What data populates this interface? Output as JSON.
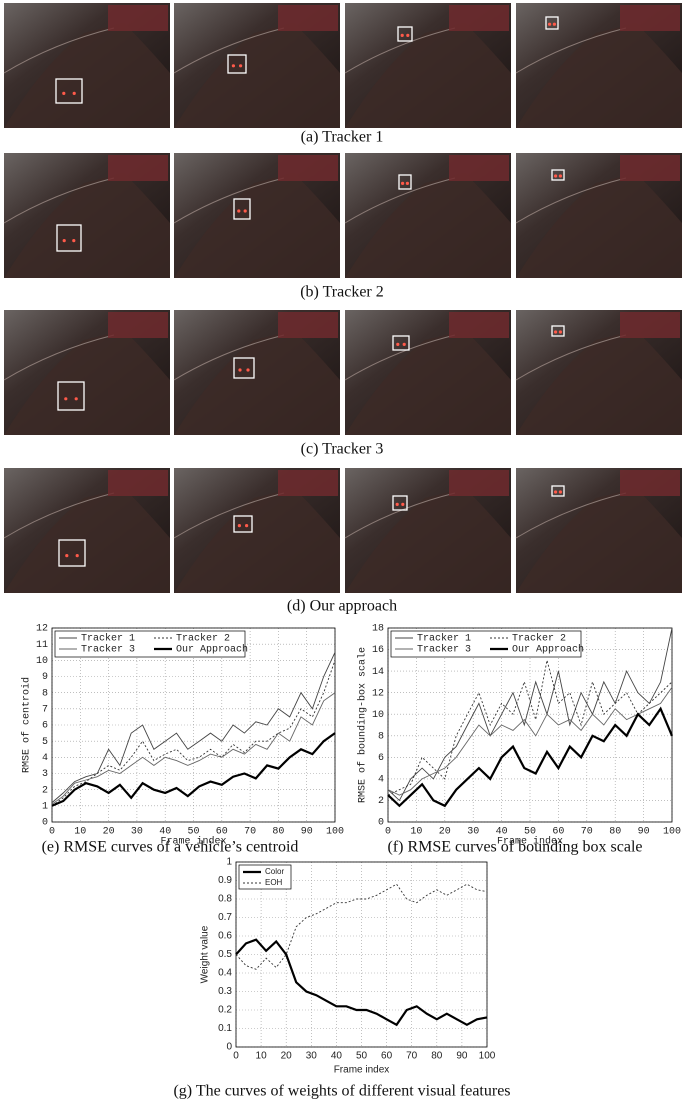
{
  "captions": [
    "(a) Tracker 1",
    "(b) Tracker 2",
    "(c) Tracker 3",
    "(d) Our approach",
    "(e) RMSE curves of a vehicle’s centroid",
    "(f) RMSE curves of bounding box scale",
    "(g) The curves of weights of different visual features"
  ],
  "chart_data": [
    {
      "type": "line",
      "xlabel": "Frame index",
      "ylabel": "RMSE of centroid",
      "x": [
        0,
        4,
        8,
        12,
        16,
        20,
        24,
        28,
        32,
        36,
        40,
        44,
        48,
        52,
        56,
        60,
        64,
        68,
        72,
        76,
        80,
        84,
        88,
        92,
        96,
        100
      ],
      "xlim": [
        0,
        100
      ],
      "xticks": [
        0,
        10,
        20,
        30,
        40,
        50,
        60,
        70,
        80,
        90,
        100
      ],
      "ylim": [
        0,
        12
      ],
      "yticks": [
        0,
        1,
        2,
        3,
        4,
        5,
        6,
        7,
        8,
        9,
        10,
        11,
        12
      ],
      "grid": true,
      "legend": "upper left",
      "series": [
        {
          "name": "Tracker 1",
          "color": "#444444",
          "style": "solid",
          "values": [
            1.2,
            1.8,
            2.5,
            2.8,
            3.0,
            4.5,
            3.5,
            5.5,
            6.0,
            4.5,
            5.0,
            5.5,
            4.5,
            5.0,
            5.5,
            5.0,
            6.0,
            5.5,
            6.2,
            6.0,
            7.0,
            6.5,
            8.0,
            7.0,
            9.0,
            10.5
          ]
        },
        {
          "name": "Tracker 2",
          "color": "#333333",
          "style": "dotted",
          "values": [
            1.0,
            1.5,
            2.2,
            2.5,
            3.0,
            3.5,
            3.2,
            4.0,
            5.0,
            3.8,
            4.2,
            4.5,
            3.8,
            4.0,
            4.5,
            4.0,
            4.8,
            4.3,
            5.0,
            5.0,
            5.5,
            5.8,
            7.0,
            6.5,
            8.0,
            10.0
          ]
        },
        {
          "name": "Tracker 3",
          "color": "#666666",
          "style": "solid",
          "values": [
            1.1,
            1.6,
            2.4,
            2.6,
            2.8,
            3.2,
            3.0,
            3.5,
            4.0,
            3.5,
            4.0,
            3.8,
            3.5,
            3.8,
            4.2,
            4.0,
            4.5,
            4.2,
            4.8,
            4.5,
            5.5,
            5.0,
            6.5,
            6.0,
            7.5,
            8.0
          ]
        },
        {
          "name": "Our Approach",
          "color": "#000000",
          "style": "bold",
          "values": [
            1.0,
            1.3,
            2.0,
            2.4,
            2.2,
            1.8,
            2.3,
            1.5,
            2.4,
            2.0,
            1.8,
            2.1,
            1.6,
            2.2,
            2.5,
            2.3,
            2.8,
            3.0,
            2.7,
            3.5,
            3.3,
            4.0,
            4.5,
            4.2,
            5.0,
            5.5
          ]
        }
      ]
    },
    {
      "type": "line",
      "xlabel": "Frame index",
      "ylabel": "RMSE of bounding-box scale",
      "x": [
        0,
        4,
        8,
        12,
        16,
        20,
        24,
        28,
        32,
        36,
        40,
        44,
        48,
        52,
        56,
        60,
        64,
        68,
        72,
        76,
        80,
        84,
        88,
        92,
        96,
        100
      ],
      "xlim": [
        0,
        100
      ],
      "xticks": [
        0,
        10,
        20,
        30,
        40,
        50,
        60,
        70,
        80,
        90,
        100
      ],
      "ylim": [
        0,
        18
      ],
      "yticks": [
        0,
        2,
        4,
        6,
        8,
        10,
        12,
        14,
        16,
        18
      ],
      "grid": true,
      "legend": "upper left",
      "series": [
        {
          "name": "Tracker 1",
          "color": "#444444",
          "style": "solid",
          "values": [
            3.0,
            2.0,
            4.0,
            5.0,
            4.0,
            6.0,
            7.0,
            9.0,
            11.0,
            8.0,
            10.0,
            12.0,
            9.0,
            13.0,
            10.0,
            14.0,
            9.0,
            12.0,
            10.0,
            13.0,
            11.0,
            14.0,
            12.0,
            11.0,
            13.0,
            18.0
          ]
        },
        {
          "name": "Tracker 2",
          "color": "#333333",
          "style": "dotted",
          "values": [
            2.5,
            3.0,
            3.5,
            6.0,
            5.0,
            4.0,
            8.0,
            10.0,
            12.0,
            9.0,
            11.0,
            10.0,
            13.0,
            9.5,
            15.0,
            11.0,
            12.0,
            9.0,
            13.0,
            10.0,
            11.0,
            12.0,
            10.0,
            11.0,
            12.0,
            13.0
          ]
        },
        {
          "name": "Tracker 3",
          "color": "#666666",
          "style": "solid",
          "values": [
            3.0,
            2.5,
            3.0,
            4.0,
            4.5,
            5.0,
            6.0,
            7.5,
            9.0,
            8.0,
            9.0,
            8.5,
            9.5,
            8.0,
            10.0,
            9.0,
            9.5,
            8.5,
            10.0,
            9.0,
            10.5,
            9.5,
            10.0,
            10.5,
            11.0,
            12.5
          ]
        },
        {
          "name": "Our Approach",
          "color": "#000000",
          "style": "bold",
          "values": [
            2.5,
            1.5,
            2.5,
            3.5,
            2.0,
            1.5,
            3.0,
            4.0,
            5.0,
            4.0,
            6.0,
            7.0,
            5.0,
            4.5,
            6.5,
            5.0,
            7.0,
            6.0,
            8.0,
            7.5,
            9.0,
            8.0,
            10.0,
            9.0,
            10.5,
            8.0
          ]
        }
      ]
    },
    {
      "type": "line",
      "xlabel": "Frame index",
      "ylabel": "Weight value",
      "x": [
        0,
        4,
        8,
        12,
        16,
        20,
        24,
        28,
        32,
        36,
        40,
        44,
        48,
        52,
        56,
        60,
        64,
        68,
        72,
        76,
        80,
        84,
        88,
        92,
        96,
        100
      ],
      "xlim": [
        0,
        100
      ],
      "xticks": [
        0,
        10,
        20,
        30,
        40,
        50,
        60,
        70,
        80,
        90,
        100
      ],
      "ylim": [
        0,
        1
      ],
      "yticks": [
        0,
        0.1,
        0.2,
        0.3,
        0.4,
        0.5,
        0.6,
        0.7,
        0.8,
        0.9,
        1
      ],
      "grid": true,
      "legend": "upper left",
      "series": [
        {
          "name": "Color",
          "color": "#000000",
          "style": "bold",
          "values": [
            0.5,
            0.56,
            0.58,
            0.52,
            0.57,
            0.5,
            0.35,
            0.3,
            0.28,
            0.25,
            0.22,
            0.22,
            0.2,
            0.2,
            0.18,
            0.15,
            0.12,
            0.2,
            0.22,
            0.18,
            0.15,
            0.18,
            0.15,
            0.12,
            0.15,
            0.16
          ]
        },
        {
          "name": "EOH",
          "color": "#333333",
          "style": "dotted",
          "values": [
            0.5,
            0.44,
            0.42,
            0.48,
            0.43,
            0.5,
            0.65,
            0.7,
            0.72,
            0.75,
            0.78,
            0.78,
            0.8,
            0.8,
            0.82,
            0.85,
            0.88,
            0.8,
            0.78,
            0.82,
            0.85,
            0.82,
            0.85,
            0.88,
            0.85,
            0.84
          ]
        }
      ]
    }
  ]
}
